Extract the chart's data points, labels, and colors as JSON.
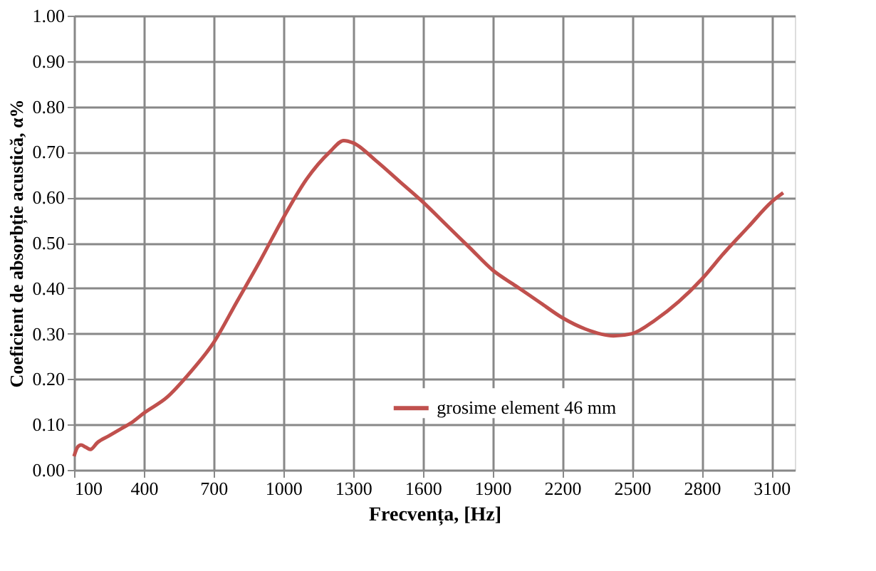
{
  "chart_data": {
    "type": "line",
    "xlabel": "Frecvența, [Hz]",
    "ylabel": "Coeficient de absorbție acustică, α%",
    "series": [
      {
        "name": "grosime element 46 mm",
        "color": "#c0504d",
        "x": [
          100,
          115,
          130,
          150,
          170,
          200,
          250,
          300,
          350,
          400,
          500,
          600,
          700,
          800,
          900,
          1000,
          1100,
          1200,
          1260,
          1300,
          1400,
          1500,
          1600,
          1700,
          1800,
          1900,
          2000,
          2100,
          2200,
          2300,
          2420,
          2500,
          2600,
          2700,
          2800,
          2900,
          3000,
          3100,
          3150
        ],
        "values": [
          0.03,
          0.05,
          0.055,
          0.05,
          0.045,
          0.06,
          0.075,
          0.09,
          0.105,
          0.125,
          0.16,
          0.215,
          0.28,
          0.37,
          0.46,
          0.555,
          0.64,
          0.7,
          0.725,
          0.72,
          0.68,
          0.635,
          0.59,
          0.54,
          0.49,
          0.44,
          0.405,
          0.37,
          0.335,
          0.31,
          0.295,
          0.3,
          0.33,
          0.37,
          0.42,
          0.48,
          0.535,
          0.59,
          0.61
        ]
      }
    ],
    "xlim": [
      100,
      3200
    ],
    "xticks": [
      100,
      400,
      700,
      1000,
      1300,
      1600,
      1900,
      2200,
      2500,
      2800,
      3100
    ],
    "ylim": [
      0,
      1
    ],
    "yticks": [
      {
        "value": 0,
        "label": "0.00"
      },
      {
        "value": 0.1,
        "label": "0.10"
      },
      {
        "value": 0.2,
        "label": "0.20"
      },
      {
        "value": 0.3,
        "label": "0.30"
      },
      {
        "value": 0.4,
        "label": "0.40"
      },
      {
        "value": 0.5,
        "label": "0.50"
      },
      {
        "value": 0.6,
        "label": "0.60"
      },
      {
        "value": 0.7,
        "label": "0.70"
      },
      {
        "value": 0.8,
        "label": "0.80"
      },
      {
        "value": 0.9,
        "label": "0.90"
      },
      {
        "value": 1,
        "label": "1.00"
      }
    ],
    "grid": true,
    "legend": "bottom right",
    "line_style": "solid"
  }
}
